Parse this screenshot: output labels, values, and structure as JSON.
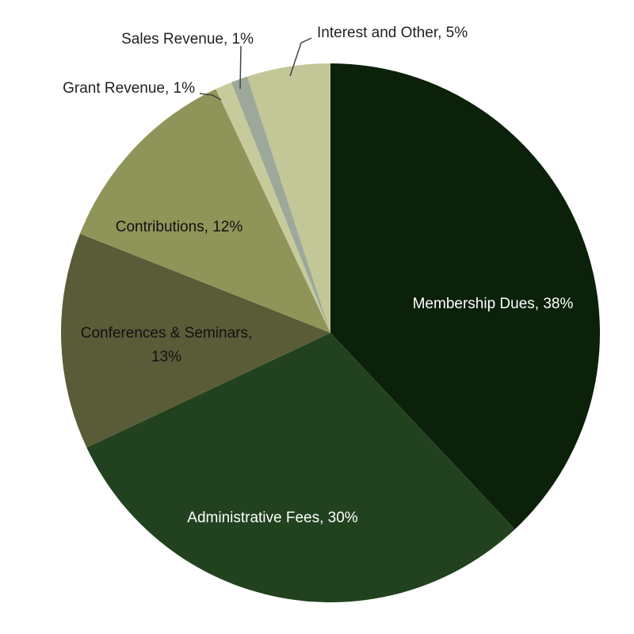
{
  "chart_data": {
    "type": "pie",
    "title": "",
    "slices": [
      {
        "name": "Membership Dues",
        "value": 38,
        "label": "Membership Dues, 38%",
        "color": "#0b2109",
        "text_color": "#ffffff"
      },
      {
        "name": "Administrative Fees",
        "value": 30,
        "label": "Administrative Fees, 30%",
        "color": "#22421f",
        "text_color": "#ffffff"
      },
      {
        "name": "Conferences & Seminars",
        "value": 13,
        "label": [
          "Conferences & Seminars,",
          "13%"
        ],
        "color": "#5a5c38",
        "text_color": "#111111"
      },
      {
        "name": "Contributions",
        "value": 12,
        "label": "Contributions, 12%",
        "color": "#8f9559",
        "text_color": "#111111"
      },
      {
        "name": "Grant Revenue",
        "value": 1,
        "label": "Grant Revenue, 1%",
        "color": "#c7cb9c",
        "text_color": "#222222"
      },
      {
        "name": "Sales Revenue",
        "value": 1,
        "label": "Sales Revenue, 1%",
        "color": "#9ca89a",
        "text_color": "#222222"
      },
      {
        "name": "Interest and Other",
        "value": 5,
        "label": "Interest and Other, 5%",
        "color": "#c3c697",
        "text_color": "#222222"
      }
    ],
    "start": "12 o'clock",
    "direction": "clockwise",
    "legend": "none"
  }
}
